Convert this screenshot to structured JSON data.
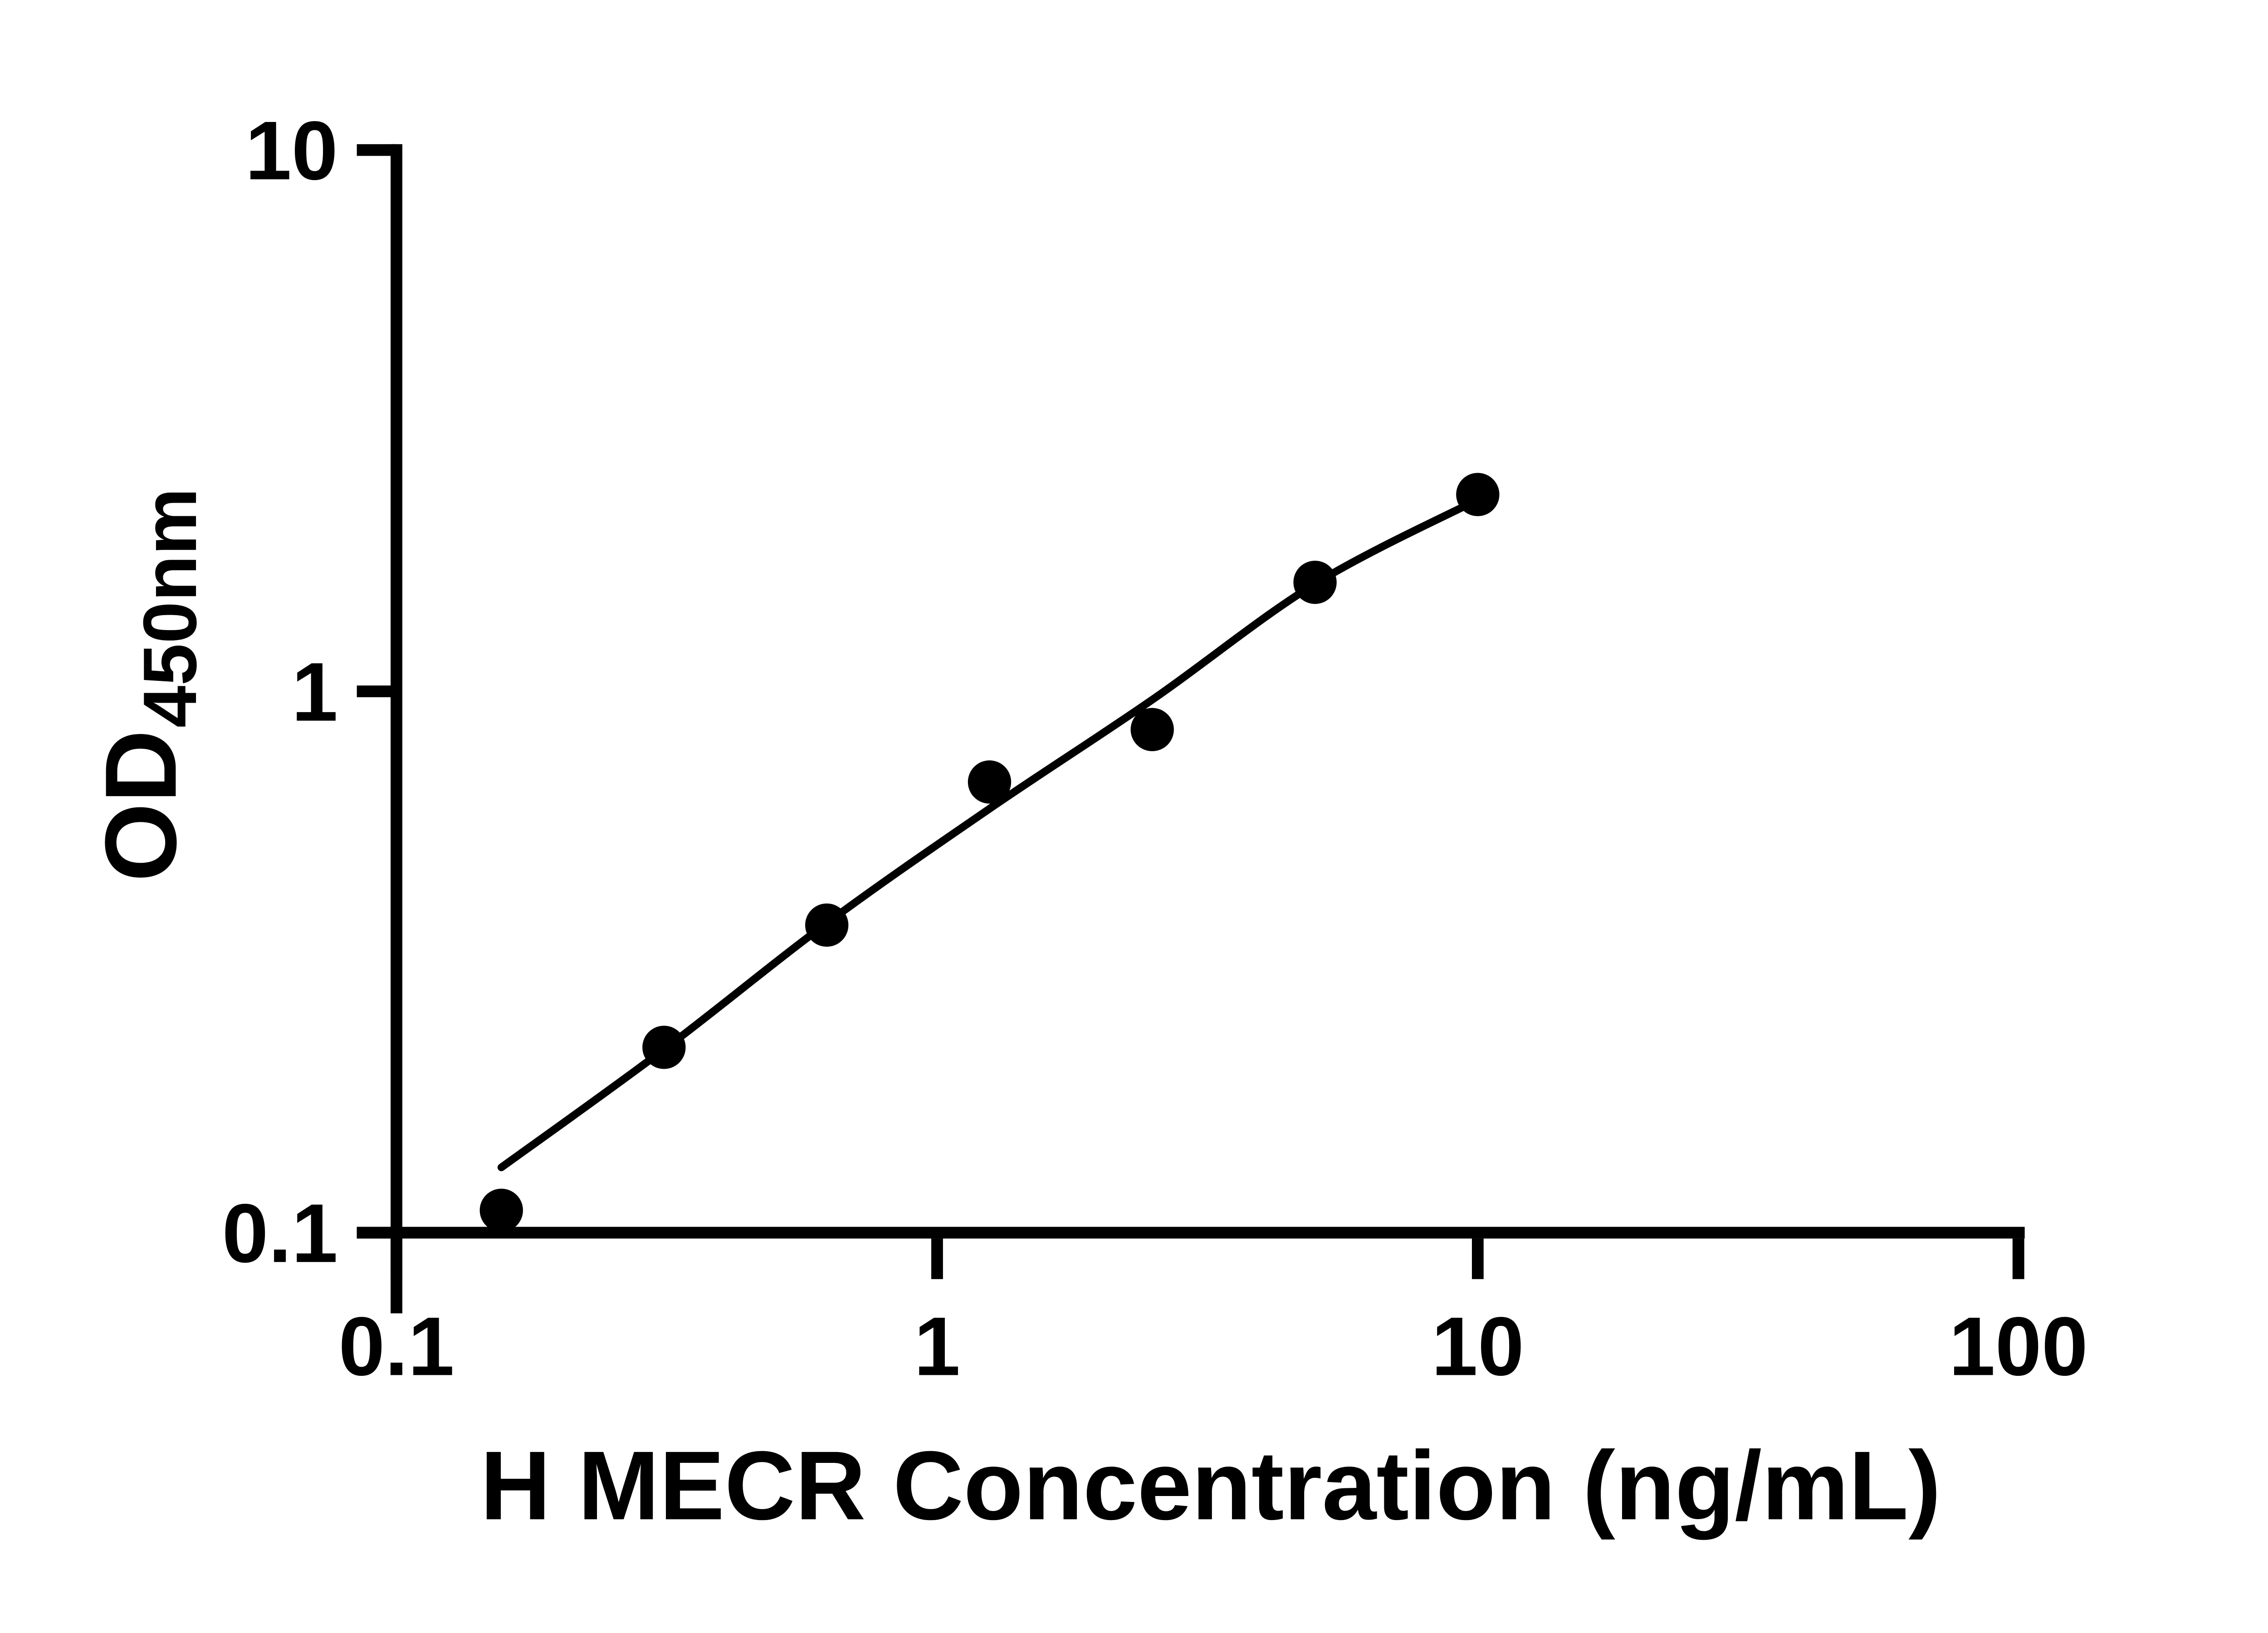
{
  "chart_data": {
    "type": "scatter",
    "title": "",
    "xlabel": "H MECR Concentration (ng/mL)",
    "ylabel": {
      "main": "OD",
      "sub": "450nm"
    },
    "x_axis": {
      "scale": "log",
      "range": [
        0.1,
        100
      ],
      "ticks": [
        {
          "value": 0.1,
          "label": "0.1"
        },
        {
          "value": 1,
          "label": "1"
        },
        {
          "value": 10,
          "label": "10"
        },
        {
          "value": 100,
          "label": "100"
        }
      ]
    },
    "y_axis": {
      "scale": "log",
      "range": [
        0.1,
        10
      ],
      "ticks": [
        {
          "value": 0.1,
          "label": "0.1"
        },
        {
          "value": 1,
          "label": "1"
        },
        {
          "value": 10,
          "label": "10"
        }
      ]
    },
    "grid": false,
    "legend": false,
    "series": [
      {
        "name": "standard-points",
        "type": "scatter",
        "marker": "circle",
        "color": "#000000",
        "x": [
          0.1563,
          0.3125,
          0.625,
          1.25,
          2.5,
          5,
          10
        ],
        "y": [
          0.11,
          0.22,
          0.37,
          0.68,
          0.85,
          1.59,
          2.31
        ]
      },
      {
        "name": "fit-line",
        "type": "line",
        "color": "#000000",
        "x": [
          0.1563,
          0.3125,
          0.625,
          1.25,
          2.5,
          5,
          10
        ],
        "y": [
          0.132,
          0.218,
          0.373,
          0.607,
          0.965,
          1.58,
          2.26
        ]
      }
    ]
  },
  "colors": {
    "background": "#ffffff",
    "ink": "#000000"
  }
}
